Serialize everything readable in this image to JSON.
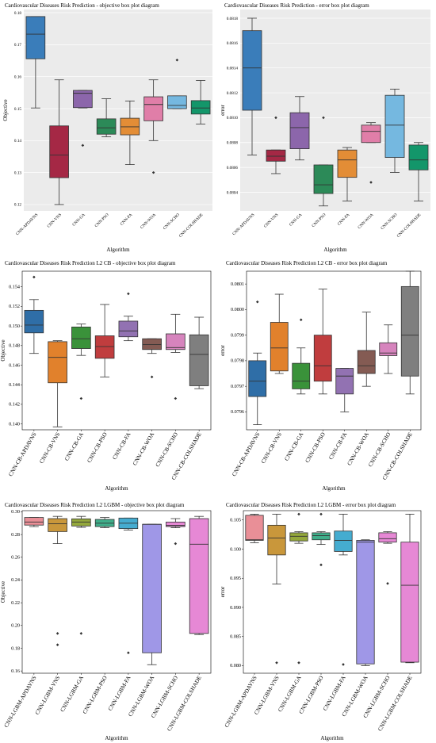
{
  "chart_data": [
    {
      "type": "box",
      "title": "Cardiovascular Diseases Risk Prediction - objective box plot diagram",
      "xlabel": "Algorithm",
      "ylabel": "Objective",
      "ylim": [
        0.118,
        0.181
      ],
      "yticks": [
        0.12,
        0.13,
        0.14,
        0.15,
        0.16,
        0.17,
        0.18
      ],
      "ytick_labels": [
        "0.12",
        "0.13",
        "0.14",
        "0.15",
        "0.16",
        "0.17",
        "0.18"
      ],
      "background": "#ebebeb",
      "grid": true,
      "categories": [
        "CNN-APDAVNS",
        "CNN-VNS",
        "CNN-GA",
        "CNN-PSO",
        "CNN-FA",
        "CNN-WOA",
        "CNN-SCHO",
        "CNN-COLSHADE"
      ],
      "colors": [
        "#3a7dba",
        "#a52845",
        "#8c66ab",
        "#2c8a58",
        "#e38d36",
        "#e07ea8",
        "#75b8e0",
        "#13966a"
      ],
      "boxes": [
        {
          "min": 0.1502,
          "q1": 0.1656,
          "median": 0.1733,
          "q3": 0.1788,
          "max": 0.1788,
          "outliers": []
        },
        {
          "min": 0.12,
          "q1": 0.1284,
          "median": 0.1355,
          "q3": 0.1446,
          "max": 0.159,
          "outliers": []
        },
        {
          "min": 0.1502,
          "q1": 0.1503,
          "median": 0.1548,
          "q3": 0.1557,
          "max": 0.1557,
          "outliers": [
            0.1385
          ]
        },
        {
          "min": 0.1412,
          "q1": 0.142,
          "median": 0.144,
          "q3": 0.1468,
          "max": 0.1531,
          "outliers": []
        },
        {
          "min": 0.1325,
          "q1": 0.1418,
          "median": 0.1443,
          "q3": 0.147,
          "max": 0.1524,
          "outliers": []
        },
        {
          "min": 0.14,
          "q1": 0.1462,
          "median": 0.1513,
          "q3": 0.1537,
          "max": 0.159,
          "outliers": [
            0.13
          ]
        },
        {
          "min": 0.15,
          "q1": 0.15,
          "median": 0.151,
          "q3": 0.154,
          "max": 0.154,
          "outliers": [
            0.1652
          ]
        },
        {
          "min": 0.1452,
          "q1": 0.1483,
          "median": 0.1502,
          "q3": 0.1525,
          "max": 0.1588,
          "outliers": []
        }
      ]
    },
    {
      "type": "box",
      "title": "Cardiovascular Diseases Risk Prediction - error box plot diagram",
      "xlabel": "Algorithm",
      "ylabel": "error",
      "ylim": [
        0.08025,
        0.08187
      ],
      "yticks": [
        0.0804,
        0.0806,
        0.0808,
        0.081,
        0.0812,
        0.0814,
        0.0816,
        0.0818
      ],
      "ytick_labels": [
        "0.0804",
        "0.0806",
        "0.0808",
        "0.0810",
        "0.0812",
        "0.0814",
        "0.0816",
        "0.0818"
      ],
      "background": "#ebebeb",
      "grid": true,
      "categories": [
        "CNN-APDAVNS",
        "CNN-VNS",
        "CNN-GA",
        "CNN-PSO",
        "CNN-FA",
        "CNN-WOA",
        "CNN-SCHO",
        "CNN-COLSHADE"
      ],
      "colors": [
        "#3a7dba",
        "#a52845",
        "#8c66ab",
        "#2c8a58",
        "#e38d36",
        "#e07ea8",
        "#75b8e0",
        "#13966a"
      ],
      "boxes": [
        {
          "min": 0.0807,
          "q1": 0.08106,
          "median": 0.0814,
          "q3": 0.0817,
          "max": 0.0818,
          "outliers": []
        },
        {
          "min": 0.08055,
          "q1": 0.08065,
          "median": 0.08069,
          "q3": 0.08074,
          "max": 0.08074,
          "outliers": [
            0.081
          ]
        },
        {
          "min": 0.08066,
          "q1": 0.08075,
          "median": 0.08092,
          "q3": 0.08104,
          "max": 0.08117,
          "outliers": []
        },
        {
          "min": 0.08029,
          "q1": 0.08039,
          "median": 0.08046,
          "q3": 0.08062,
          "max": 0.08062,
          "outliers": [
            0.081
          ]
        },
        {
          "min": 0.08033,
          "q1": 0.08052,
          "median": 0.08066,
          "q3": 0.08074,
          "max": 0.08076,
          "outliers": []
        },
        {
          "min": 0.0808,
          "q1": 0.0808,
          "median": 0.08089,
          "q3": 0.08094,
          "max": 0.08096,
          "outliers": [
            0.08048
          ]
        },
        {
          "min": 0.08056,
          "q1": 0.08068,
          "median": 0.08094,
          "q3": 0.08118,
          "max": 0.08123,
          "outliers": []
        },
        {
          "min": 0.08033,
          "q1": 0.08058,
          "median": 0.08066,
          "q3": 0.08078,
          "max": 0.0808,
          "outliers": []
        }
      ]
    },
    {
      "type": "box",
      "title": "Cardiovascular Diseases Risk Prediction L2 CB - objective box plot diagram",
      "xlabel": "Algorithm",
      "ylabel": "Objective",
      "ylim": [
        0.1394,
        0.1556
      ],
      "yticks": [
        0.14,
        0.142,
        0.144,
        0.146,
        0.148,
        0.15,
        0.152,
        0.154
      ],
      "ytick_labels": [
        "0.140",
        "0.142",
        "0.144",
        "0.146",
        "0.148",
        "0.150",
        "0.152",
        "0.154"
      ],
      "background": "#ffffff",
      "grid": false,
      "categories": [
        "CNN-CB-APDAVNS",
        "CNN-CB-VNS",
        "CNN-CB-GA",
        "CNN-CB-PSO",
        "CNN-CB-FA",
        "CNN-CB-WOA",
        "CNN-CB-SCHO",
        "CNN-CB-COLSHADE"
      ],
      "colors": [
        "#2f6ea7",
        "#e1812c",
        "#3a923a",
        "#c03d3e",
        "#9272b2",
        "#845b53",
        "#d684bd",
        "#7f7f7f"
      ],
      "boxes": [
        {
          "min": 0.1472,
          "q1": 0.1493,
          "median": 0.1501,
          "q3": 0.1516,
          "max": 0.1527,
          "outliers": [
            0.155
          ]
        },
        {
          "min": 0.1397,
          "q1": 0.1442,
          "median": 0.1468,
          "q3": 0.1484,
          "max": 0.1485,
          "outliers": []
        },
        {
          "min": 0.147,
          "q1": 0.1477,
          "median": 0.1487,
          "q3": 0.1499,
          "max": 0.1502,
          "outliers": [
            0.1426
          ]
        },
        {
          "min": 0.1448,
          "q1": 0.1467,
          "median": 0.1479,
          "q3": 0.149,
          "max": 0.1522,
          "outliers": []
        },
        {
          "min": 0.1485,
          "q1": 0.1489,
          "median": 0.1495,
          "q3": 0.1505,
          "max": 0.151,
          "outliers": [
            0.1533
          ]
        },
        {
          "min": 0.1472,
          "q1": 0.1476,
          "median": 0.1481,
          "q3": 0.1487,
          "max": 0.1487,
          "outliers": [
            0.1448
          ]
        },
        {
          "min": 0.1473,
          "q1": 0.1476,
          "median": 0.1478,
          "q3": 0.1492,
          "max": 0.1512,
          "outliers": [
            0.1426
          ]
        },
        {
          "min": 0.1436,
          "q1": 0.1439,
          "median": 0.1471,
          "q3": 0.1491,
          "max": 0.1509,
          "outliers": []
        }
      ]
    },
    {
      "type": "box",
      "title": "Cardiovascular Diseases Risk Prediction L2 CB - error box plot diagram",
      "xlabel": "Algorithm",
      "ylabel": "error",
      "ylim": [
        0.07953,
        0.08015
      ],
      "yticks": [
        0.0796,
        0.0797,
        0.0798,
        0.0799,
        0.08,
        0.0801
      ],
      "ytick_labels": [
        "0.0796",
        "0.0797",
        "0.0798",
        "0.0799",
        "0.0800",
        "0.0801"
      ],
      "background": "#ffffff",
      "grid": false,
      "categories": [
        "CNN-CB-APDAVNS",
        "CNN-CB-VNS",
        "CNN-CB-GA",
        "CNN-CB-PSO",
        "CNN-CB-FA",
        "CNN-CB-WOA",
        "CNN-CB-SCHO",
        "CNN-CB-COLSHADE"
      ],
      "colors": [
        "#2f6ea7",
        "#e1812c",
        "#3a923a",
        "#c03d3e",
        "#9272b2",
        "#845b53",
        "#d684bd",
        "#7f7f7f"
      ],
      "boxes": [
        {
          "min": 0.07955,
          "q1": 0.07966,
          "median": 0.07972,
          "q3": 0.0798,
          "max": 0.07983,
          "outliers": [
            0.08003
          ]
        },
        {
          "min": 0.07975,
          "q1": 0.07976,
          "median": 0.07985,
          "q3": 0.07995,
          "max": 0.08006,
          "outliers": []
        },
        {
          "min": 0.07967,
          "q1": 0.07969,
          "median": 0.07972,
          "q3": 0.07979,
          "max": 0.07985,
          "outliers": [
            0.07996
          ]
        },
        {
          "min": 0.07967,
          "q1": 0.07972,
          "median": 0.07978,
          "q3": 0.0799,
          "max": 0.08008,
          "outliers": []
        },
        {
          "min": 0.0796,
          "q1": 0.07967,
          "median": 0.07974,
          "q3": 0.07977,
          "max": 0.07977,
          "outliers": []
        },
        {
          "min": 0.0797,
          "q1": 0.07975,
          "median": 0.07978,
          "q3": 0.07984,
          "max": 0.07999,
          "outliers": []
        },
        {
          "min": 0.07975,
          "q1": 0.07982,
          "median": 0.07983,
          "q3": 0.07987,
          "max": 0.07994,
          "outliers": []
        },
        {
          "min": 0.07967,
          "q1": 0.07974,
          "median": 0.0799,
          "q3": 0.08009,
          "max": 0.08015,
          "outliers": []
        }
      ]
    },
    {
      "type": "box",
      "title": "Cardiovascular Diseases Risk Prediction L2 LGBM - objective box plot diagram",
      "xlabel": "Algorithm",
      "ylabel": "Objective",
      "ylim": [
        0.158,
        0.301
      ],
      "yticks": [
        0.16,
        0.18,
        0.2,
        0.22,
        0.24,
        0.26,
        0.28,
        0.3
      ],
      "ytick_labels": [
        "0.16",
        "0.18",
        "0.20",
        "0.22",
        "0.24",
        "0.26",
        "0.28",
        "0.30"
      ],
      "background": "#ffffff",
      "grid": false,
      "categories": [
        "CNN-LGBM-APDAVNS",
        "CNN-LGBM-VNS",
        "CNN-LGBM-GA",
        "CNN-LGBM-PSO",
        "CNN-LGBM-FA",
        "CNN-LGBM-WOA",
        "CNN-LGBM-SCHO",
        "CNN-LGBM-COLSHADE"
      ],
      "colors": [
        "#e98f97",
        "#c9973b",
        "#94a83c",
        "#3fae8a",
        "#45acd0",
        "#9f97e7",
        "#e688d5",
        "#e688d5"
      ],
      "boxes": [
        {
          "min": 0.287,
          "q1": 0.2883,
          "median": 0.291,
          "q3": 0.295,
          "max": 0.295,
          "outliers": []
        },
        {
          "min": 0.272,
          "q1": 0.2826,
          "median": 0.2895,
          "q3": 0.294,
          "max": 0.296,
          "outliers": [
            0.183,
            0.193
          ]
        },
        {
          "min": 0.2863,
          "q1": 0.2875,
          "median": 0.291,
          "q3": 0.2938,
          "max": 0.296,
          "outliers": [
            0.193
          ]
        },
        {
          "min": 0.286,
          "q1": 0.287,
          "median": 0.29,
          "q3": 0.2933,
          "max": 0.295,
          "outliers": []
        },
        {
          "min": 0.284,
          "q1": 0.2852,
          "median": 0.29,
          "q3": 0.2945,
          "max": 0.2945,
          "outliers": [
            0.176
          ]
        },
        {
          "min": 0.1655,
          "q1": 0.176,
          "median": 0.289,
          "q3": 0.289,
          "max": 0.289,
          "outliers": []
        },
        {
          "min": 0.286,
          "q1": 0.287,
          "median": 0.288,
          "q3": 0.291,
          "max": 0.294,
          "outliers": [
            0.272
          ]
        },
        {
          "min": 0.192,
          "q1": 0.193,
          "median": 0.2715,
          "q3": 0.294,
          "max": 0.296,
          "outliers": []
        }
      ]
    },
    {
      "type": "box",
      "title": "Cardiovascular Diseases Risk Prediction L2 LGBM - error box plot diagram",
      "xlabel": "Algorithm",
      "ylabel": "error",
      "ylim": [
        0.0787,
        0.1066
      ],
      "yticks": [
        0.08,
        0.085,
        0.09,
        0.095,
        0.1,
        0.105
      ],
      "ytick_labels": [
        "0.080",
        "0.085",
        "0.090",
        "0.095",
        "0.100",
        "0.105"
      ],
      "background": "#ffffff",
      "grid": false,
      "categories": [
        "CNN-LGBM-APDAVNS",
        "CNN-LGBM-VNS",
        "CNN-LGBM-GA",
        "CNN-LGBM-PSO",
        "CNN-LGBM-FA",
        "CNN-LGBM-WOA",
        "CNN-LGBM-SCHO",
        "CNN-LGBM-COLSHADE"
      ],
      "colors": [
        "#e98f97",
        "#c9973b",
        "#94a83c",
        "#3fae8a",
        "#45acd0",
        "#9f97e7",
        "#e688d5",
        "#e688d5"
      ],
      "boxes": [
        {
          "min": 0.1011,
          "q1": 0.1015,
          "median": 0.1016,
          "q3": 0.1058,
          "max": 0.106,
          "outliers": []
        },
        {
          "min": 0.094,
          "q1": 0.099,
          "median": 0.1019,
          "q3": 0.1041,
          "max": 0.106,
          "outliers": [
            0.0805
          ]
        },
        {
          "min": 0.101,
          "q1": 0.1014,
          "median": 0.1022,
          "q3": 0.1028,
          "max": 0.103,
          "outliers": [
            0.0805,
            0.106
          ]
        },
        {
          "min": 0.1008,
          "q1": 0.1016,
          "median": 0.1023,
          "q3": 0.1028,
          "max": 0.103,
          "outliers": [
            0.0973,
            0.106
          ]
        },
        {
          "min": 0.099,
          "q1": 0.0996,
          "median": 0.1015,
          "q3": 0.1031,
          "max": 0.106,
          "outliers": [
            0.0802
          ]
        },
        {
          "min": 0.08,
          "q1": 0.0803,
          "median": 0.1012,
          "q3": 0.1015,
          "max": 0.1016,
          "outliers": []
        },
        {
          "min": 0.101,
          "q1": 0.1012,
          "median": 0.1018,
          "q3": 0.1028,
          "max": 0.103,
          "outliers": [
            0.0941
          ]
        },
        {
          "min": 0.0805,
          "q1": 0.0806,
          "median": 0.0938,
          "q3": 0.1012,
          "max": 0.106,
          "outliers": []
        }
      ]
    }
  ]
}
